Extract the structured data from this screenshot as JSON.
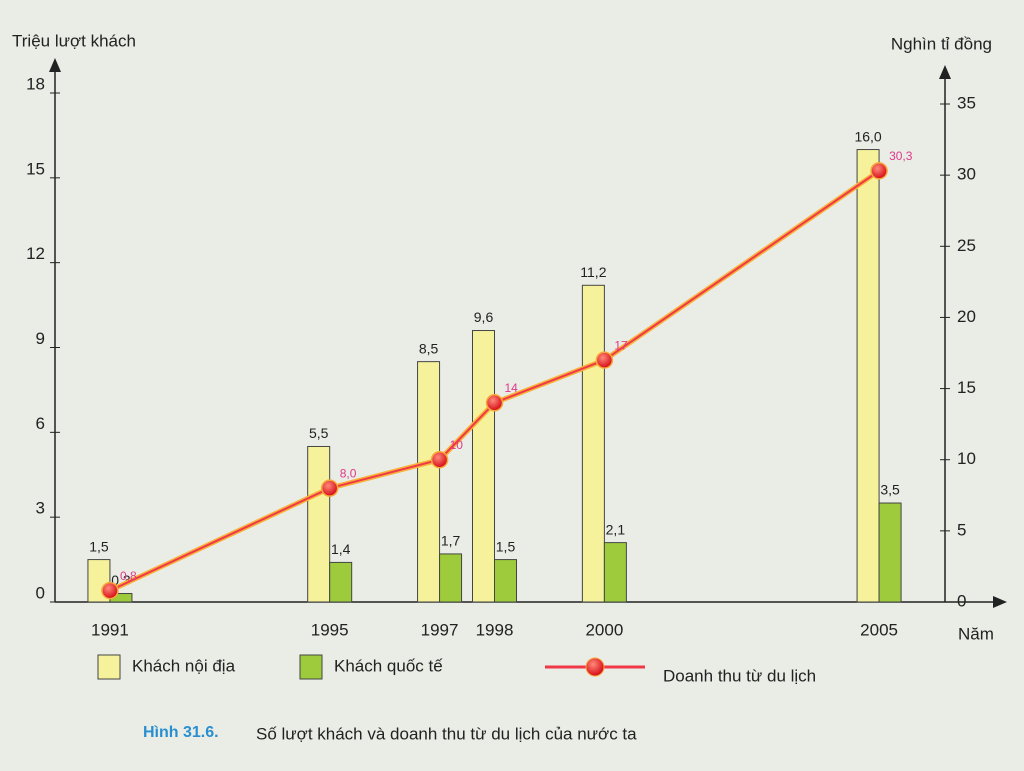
{
  "chart_data": {
    "type": "bar",
    "y_label": "Triệu lượt khách",
    "y2_label": "Nghìn tỉ đồng",
    "x_label": "Năm",
    "figure_number": "Hình 31.6.",
    "caption": "Số lượt khách và doanh thu từ du lịch của nước ta",
    "x": [
      1991,
      1995,
      1997,
      1998,
      2000,
      2005
    ],
    "xlim": [
      1990,
      2006.2
    ],
    "ylim": [
      0,
      18
    ],
    "yticks": [
      0,
      3,
      6,
      9,
      12,
      15,
      18
    ],
    "y2lim": [
      0,
      35
    ],
    "y2ticks": [
      0,
      5,
      10,
      15,
      20,
      25,
      30,
      35
    ],
    "series": [
      {
        "name": "Khách nội địa",
        "color": "#f6f29c",
        "values": [
          1.5,
          5.5,
          8.5,
          9.6,
          11.2,
          16.0
        ],
        "value_labels": [
          "1,5",
          "5,5",
          "8,5",
          "9,6",
          "11,2",
          "16,0"
        ]
      },
      {
        "name": "Khách quốc tế",
        "color": "#9ecb3c",
        "values": [
          0.3,
          1.4,
          1.7,
          1.5,
          2.1,
          3.5
        ],
        "value_labels": [
          "0,3",
          "1,4",
          "1,7",
          "1,5",
          "2,1",
          "3,5"
        ]
      },
      {
        "name": "Doanh thu từ du lịch",
        "color": "#f03848",
        "type": "line",
        "axis": "y2",
        "values": [
          0.8,
          8.0,
          10,
          14,
          17,
          30.3
        ],
        "value_labels": [
          "0,8",
          "8,0",
          "10",
          "14",
          "17",
          "30,3"
        ]
      }
    ]
  }
}
